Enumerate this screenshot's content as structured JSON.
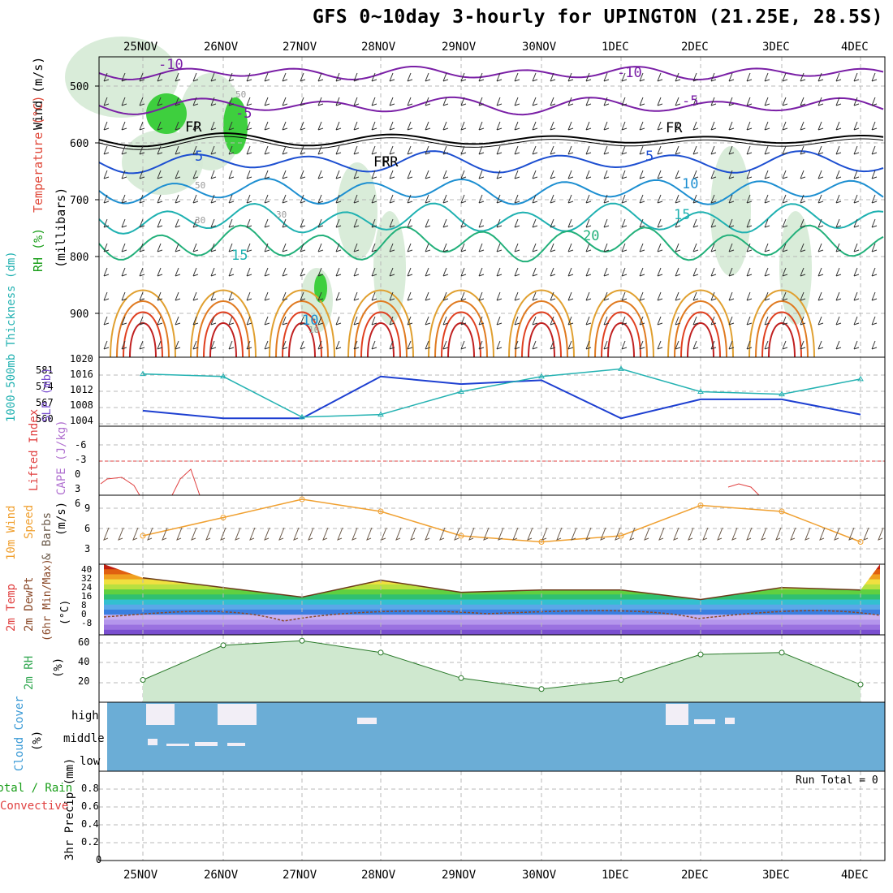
{
  "title": "GFS 0~10day 3-hourly for UPINGTON (21.25E, 28.5S)",
  "date_labels": [
    "25NOV",
    "26NOV",
    "27NOV",
    "28NOV",
    "29NOV",
    "30NOV",
    "1DEC",
    "2DEC",
    "3DEC",
    "4DEC"
  ],
  "panels": {
    "upper": {
      "ylabel_parts": [
        {
          "text": "Wind (m/s)",
          "color": "#000000"
        },
        {
          "text": "Temperature (°C)",
          "color": "#e0493a"
        },
        {
          "text": "RH (%)",
          "color": "#1a9e1a"
        }
      ],
      "ylabel_units": "(millibars)",
      "ticks": [
        "500",
        "600",
        "700",
        "800",
        "900"
      ],
      "isotherm_labels": [
        {
          "text": "-10",
          "color": "#7a1fa6"
        },
        {
          "text": "-10",
          "color": "#7a1fa6"
        },
        {
          "text": "-5",
          "color": "#7a1fa6"
        },
        {
          "text": "-5",
          "color": "#7a1fa6"
        },
        {
          "text": "FR",
          "color": "#000000"
        },
        {
          "text": "FR",
          "color": "#000000"
        },
        {
          "text": "FR",
          "color": "#000000"
        },
        {
          "text": "FR",
          "color": "#000000"
        },
        {
          "text": "5",
          "color": "#1d4fd1"
        },
        {
          "text": "5",
          "color": "#1d4fd1"
        },
        {
          "text": "10",
          "color": "#1d8fd1"
        },
        {
          "text": "10",
          "color": "#1d8fd1"
        },
        {
          "text": "15",
          "color": "#1fb1b1"
        },
        {
          "text": "15",
          "color": "#1fb1b1"
        },
        {
          "text": "20",
          "color": "#22b07a"
        }
      ],
      "rh_labels": [
        "50",
        "50",
        "30",
        "30",
        "10"
      ],
      "rh_legend": "RH (%)"
    },
    "slp": {
      "ylabel_left": "1000-500mb Thickness (dm)",
      "ylabel_right": "SLP (mb)",
      "ticks_left": [
        "581",
        "574",
        "567",
        "560"
      ],
      "ticks_right": [
        "1020",
        "1016",
        "1012",
        "1008",
        "1004"
      ]
    },
    "cape": {
      "ylabel_left": "Lifted Index",
      "ylabel_right": "CAPE (J/kg)",
      "ticks": [
        "-6",
        "-3",
        "0",
        "3",
        "6"
      ]
    },
    "wind10": {
      "ylabel_left": "10m Wind",
      "ylabel_mid": "Speed",
      "ylabel_right": "& Barbs",
      "unit": "(m/s)",
      "ticks": [
        "9",
        "6",
        "3"
      ]
    },
    "temp2m": {
      "ylabel_parts": [
        "2m Temp",
        "2m DewPt",
        "(6hr Min/Max)"
      ],
      "unit": "(°C)",
      "ticks": [
        "40",
        "32",
        "24",
        "16",
        "8",
        "0",
        "-8"
      ]
    },
    "rh2m": {
      "ylabel": "2m RH",
      "unit": "(%)",
      "ticks": [
        "60",
        "40",
        "20"
      ]
    },
    "cloud": {
      "ylabel": "Cloud Cover",
      "unit": "(%)",
      "levels": [
        "high",
        "middle",
        "low"
      ]
    },
    "precip": {
      "ylabel_left": "Total / Rain",
      "ylabel_right": "Convective",
      "ylabel_main": "3hr Precip (mm)",
      "ticks": [
        "0.8",
        "0.6",
        "0.4",
        "0.2",
        "0"
      ],
      "run_total": "Run Total = 0"
    }
  },
  "colors": {
    "thickness": "#24b2b2",
    "slp": "#1d3fd1",
    "lifted": "#e04040",
    "wind_speed": "#f0a030",
    "dewpoint": "#8b4a2a",
    "rh": "#34a853",
    "cloud_bg": "#6badd6"
  },
  "chart_data": [
    {
      "type": "line",
      "title": "1000-500mb Thickness / SLP",
      "x": [
        "25NOV",
        "26NOV",
        "27NOV",
        "28NOV",
        "29NOV",
        "30NOV",
        "1DEC",
        "2DEC",
        "3DEC",
        "4DEC"
      ],
      "series": [
        {
          "name": "SLP (mb)",
          "values": [
            1007,
            1005,
            1005,
            1016,
            1014,
            1015,
            1005,
            1010,
            1010,
            1006
          ]
        },
        {
          "name": "1000-500mb Thickness (dm)",
          "values": [
            579,
            578,
            562,
            563,
            572,
            578,
            581,
            572,
            571,
            577
          ]
        }
      ],
      "ylim": [
        1004,
        1020
      ]
    },
    {
      "type": "line",
      "title": "10m Wind Speed",
      "x": [
        "25NOV",
        "26NOV",
        "27NOV",
        "28NOV",
        "29NOV",
        "30NOV",
        "1DEC",
        "2DEC",
        "3DEC",
        "4DEC"
      ],
      "series": [
        {
          "name": "10m Wind Speed (m/s)",
          "values": [
            4,
            7,
            10,
            8,
            4,
            3,
            4,
            9,
            8,
            3
          ]
        }
      ],
      "ylim": [
        0,
        10
      ]
    },
    {
      "type": "area",
      "title": "2m Temp",
      "x": [
        "25NOV",
        "26NOV",
        "27NOV",
        "28NOV",
        "29NOV",
        "30NOV",
        "1DEC",
        "2DEC",
        "3DEC",
        "4DEC"
      ],
      "series": [
        {
          "name": "2m Temp (°C)",
          "values": [
            32,
            24,
            16,
            30,
            20,
            22,
            22,
            14,
            24,
            22
          ]
        }
      ],
      "ylim": [
        -12,
        40
      ]
    },
    {
      "type": "area",
      "title": "2m RH",
      "x": [
        "25NOV",
        "26NOV",
        "27NOV",
        "28NOV",
        "29NOV",
        "30NOV",
        "1DEC",
        "2DEC",
        "3DEC",
        "4DEC"
      ],
      "series": [
        {
          "name": "2m RH (%)",
          "values": [
            20,
            58,
            63,
            50,
            22,
            10,
            20,
            48,
            50,
            15
          ]
        }
      ],
      "ylim": [
        0,
        65
      ]
    }
  ]
}
